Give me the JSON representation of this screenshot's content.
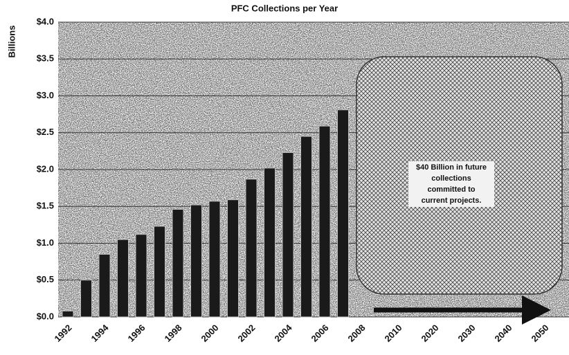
{
  "chart_data": {
    "type": "bar",
    "title": "PFC Collections per Year",
    "y_label": "Billions",
    "categories": [
      "1992",
      null,
      "1994",
      null,
      "1996",
      null,
      "1998",
      null,
      "2000",
      null,
      "2002",
      null,
      "2004",
      null,
      "2006",
      null,
      "2008",
      null,
      "2010",
      null,
      "2020",
      null,
      "2030",
      null,
      "2040",
      null,
      "2050",
      null
    ],
    "values": [
      0.08,
      0.5,
      0.85,
      1.05,
      1.12,
      1.23,
      1.46,
      1.52,
      1.57,
      1.59,
      1.87,
      2.02,
      2.23,
      2.45,
      2.59,
      2.81,
      null,
      null,
      null,
      null,
      null,
      null,
      null,
      null,
      null,
      null,
      null,
      null
    ],
    "color": "#1a1a1a",
    "ylim": [
      0,
      4
    ],
    "yticks": [
      {
        "value": 0,
        "label": "$0.0"
      },
      {
        "value": 0.5,
        "label": "$0.5"
      },
      {
        "value": 1,
        "label": "$1.0"
      },
      {
        "value": 1.5,
        "label": "$1.5"
      },
      {
        "value": 2,
        "label": "$2.0"
      },
      {
        "value": 2.5,
        "label": "$2.5"
      },
      {
        "value": 3,
        "label": "$3.0"
      },
      {
        "value": 3.5,
        "label": "$3.5"
      },
      {
        "value": 4,
        "label": "$4.0"
      }
    ],
    "grid": true,
    "annotation": [
      "$40 Billion in future",
      "collections",
      "committed to",
      "current projects."
    ]
  }
}
